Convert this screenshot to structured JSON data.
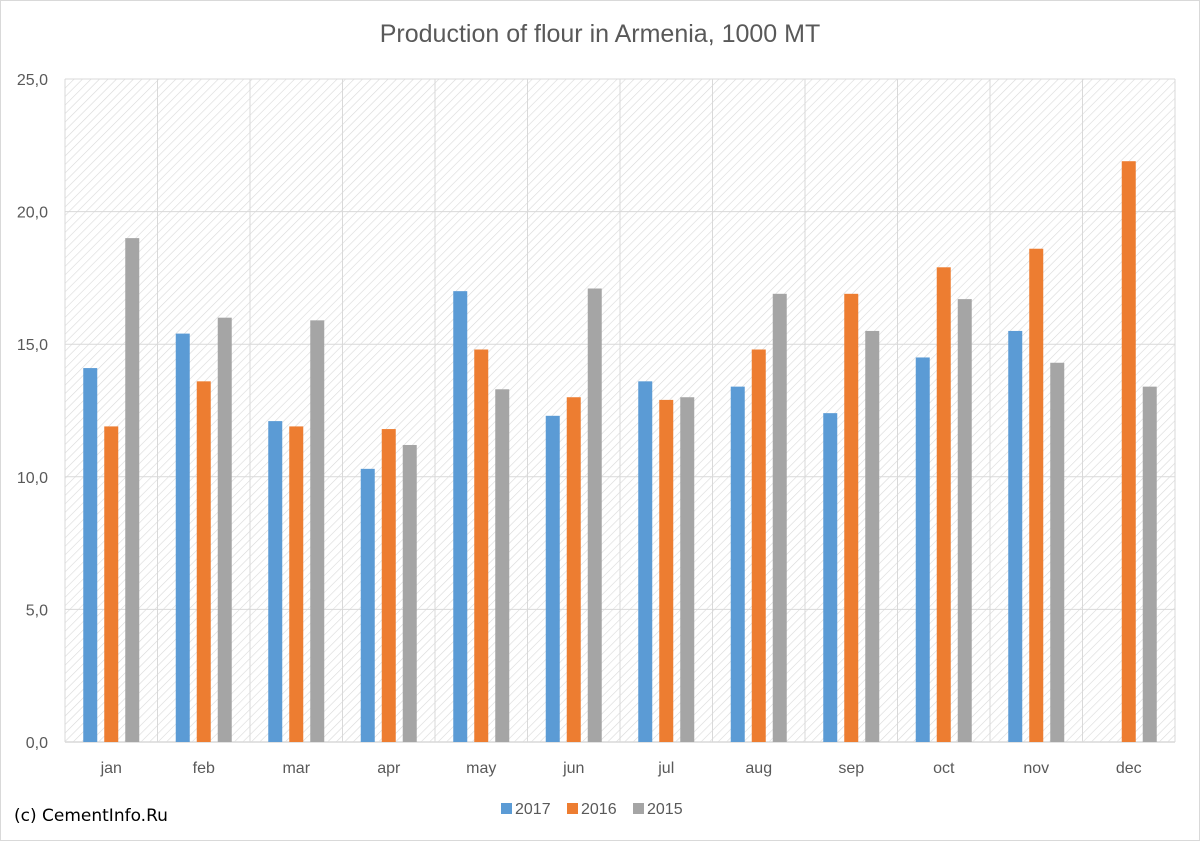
{
  "chart_data": {
    "type": "bar",
    "title": "Production of flour in Armenia, 1000 MT",
    "xlabel": "",
    "ylabel": "",
    "ylim": [
      0,
      25
    ],
    "yticks": [
      0,
      5,
      10,
      15,
      20,
      25
    ],
    "ytick_labels": [
      "0,0",
      "5,0",
      "10,0",
      "15,0",
      "20,0",
      "25,0"
    ],
    "grid": true,
    "legend_position": "bottom",
    "categories": [
      "jan",
      "feb",
      "mar",
      "apr",
      "may",
      "jun",
      "jul",
      "aug",
      "sep",
      "oct",
      "nov",
      "dec"
    ],
    "series": [
      {
        "name": "2017",
        "color": "#5b9bd5",
        "values": [
          14.1,
          15.4,
          12.1,
          10.3,
          17.0,
          12.3,
          13.6,
          13.4,
          12.4,
          14.5,
          15.5,
          null
        ]
      },
      {
        "name": "2016",
        "color": "#ed7d31",
        "values": [
          11.9,
          13.6,
          11.9,
          11.8,
          14.8,
          13.0,
          12.9,
          14.8,
          16.9,
          17.9,
          18.6,
          21.9
        ]
      },
      {
        "name": "2015",
        "color": "#a5a5a5",
        "values": [
          19.0,
          16.0,
          15.9,
          11.2,
          13.3,
          17.1,
          13.0,
          16.9,
          15.5,
          16.7,
          14.3,
          13.4
        ]
      }
    ]
  },
  "credit": "(c) CementInfo.Ru"
}
